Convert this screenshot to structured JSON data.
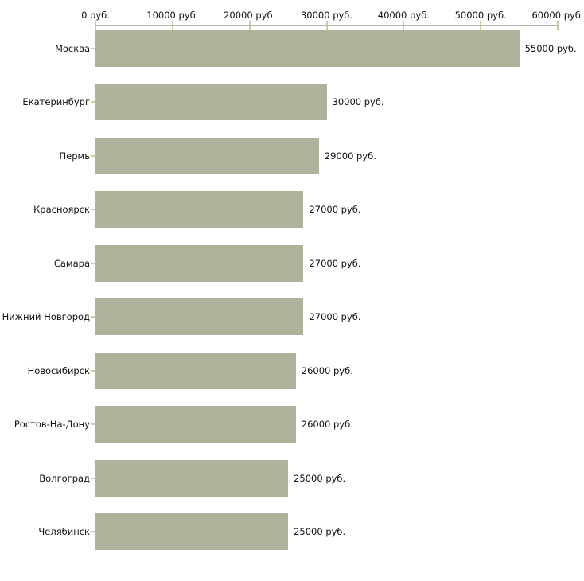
{
  "chart_data": {
    "type": "bar",
    "orientation": "horizontal",
    "categories": [
      "Москва",
      "Екатеринбург",
      "Пермь",
      "Красноярск",
      "Самара",
      "Нижний Новгород",
      "Новосибирск",
      "Ростов-На-Дону",
      "Волгоград",
      "Челябинск"
    ],
    "values": [
      55000,
      30000,
      29000,
      27000,
      27000,
      27000,
      26000,
      26000,
      25000,
      25000
    ],
    "value_labels": [
      "55000 руб.",
      "30000 руб.",
      "29000 руб.",
      "27000 руб.",
      "27000 руб.",
      "27000 руб.",
      "26000 руб.",
      "26000 руб.",
      "25000 руб.",
      "25000 руб."
    ],
    "x_axis": {
      "position": "top",
      "range": [
        0,
        60000
      ],
      "ticks": [
        0,
        10000,
        20000,
        30000,
        40000,
        50000,
        60000
      ],
      "tick_labels": [
        "0 руб.",
        "10000 руб.",
        "20000 руб.",
        "30000 руб.",
        "40000 руб.",
        "50000 руб.",
        "60000 руб."
      ],
      "unit": "руб."
    },
    "legend": null,
    "grid": false,
    "colors": {
      "bar": "#aeb49c",
      "axis_line": "#b6b6b6",
      "tick_mark": "#cbcea2",
      "text": "#111111",
      "background": "#ffffff"
    }
  }
}
